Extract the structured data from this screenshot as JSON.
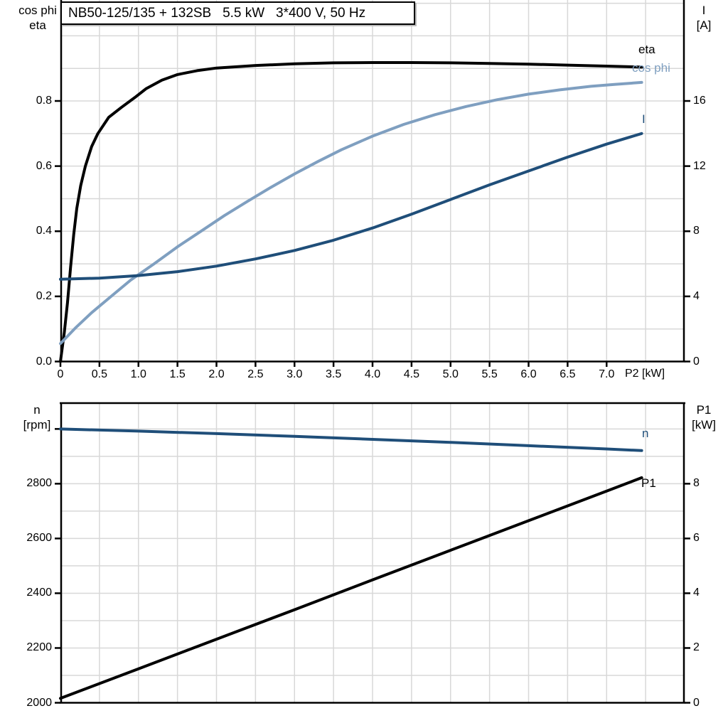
{
  "colors": {
    "eta": "#000000",
    "cos_phi": "#7F9FC0",
    "current": "#1F4E79",
    "speed": "#1F4E79",
    "p1": "#000000",
    "grid": "#D8D8D8",
    "axis": "#000000",
    "background": "#FFFFFF"
  },
  "chart_data": [
    {
      "type": "line",
      "title": "NB50-125/135 + 132SB   5.5 kW   3*400 V, 50 Hz",
      "grid": true,
      "x_axis": {
        "label": "P2 [kW]",
        "range": [
          0,
          8
        ],
        "grid_step": 0.5,
        "tick_values": [
          0,
          0.5,
          1,
          1.5,
          2,
          2.5,
          3,
          3.5,
          4,
          4.5,
          5,
          5.5,
          6,
          6.5,
          7
        ],
        "tick_labels": [
          "0",
          "0.5",
          "1.0",
          "1.5",
          "2.0",
          "2.5",
          "3.0",
          "3.5",
          "4.0",
          "4.5",
          "5.0",
          "5.5",
          "6.0",
          "6.5",
          "7.0"
        ]
      },
      "y_left": {
        "label": "cos phi / eta",
        "display_lines": [
          "cos phi",
          "eta"
        ],
        "range": [
          0,
          1.11
        ],
        "grid_step": 0.1,
        "tick_values": [
          0,
          0.2,
          0.4,
          0.6,
          0.8
        ],
        "tick_labels": [
          "0.0",
          "0.2",
          "0.4",
          "0.6",
          "0.8"
        ]
      },
      "y_right": {
        "label": "I [A]",
        "display_lines": [
          "I",
          "[A]"
        ],
        "range": [
          0,
          22.2
        ],
        "tick_values": [
          0,
          4,
          8,
          12,
          16
        ],
        "tick_labels": [
          "0",
          "4",
          "8",
          "12",
          "16"
        ]
      },
      "series": [
        {
          "name": "eta",
          "axis": "left",
          "color": "#000000",
          "points": [
            [
              0,
              0
            ],
            [
              0.05,
              0.09
            ],
            [
              0.09,
              0.18
            ],
            [
              0.13,
              0.29
            ],
            [
              0.17,
              0.39
            ],
            [
              0.21,
              0.47
            ],
            [
              0.26,
              0.54
            ],
            [
              0.32,
              0.6
            ],
            [
              0.4,
              0.66
            ],
            [
              0.48,
              0.7
            ],
            [
              0.62,
              0.75
            ],
            [
              0.78,
              0.78
            ],
            [
              0.95,
              0.81
            ],
            [
              1.1,
              0.838
            ],
            [
              1.3,
              0.864
            ],
            [
              1.5,
              0.881
            ],
            [
              1.75,
              0.893
            ],
            [
              2,
              0.901
            ],
            [
              2.5,
              0.909
            ],
            [
              3,
              0.914
            ],
            [
              3.5,
              0.917
            ],
            [
              4,
              0.918
            ],
            [
              4.5,
              0.918
            ],
            [
              5,
              0.917
            ],
            [
              5.5,
              0.915
            ],
            [
              6,
              0.913
            ],
            [
              6.5,
              0.91
            ],
            [
              7,
              0.907
            ],
            [
              7.45,
              0.904
            ]
          ]
        },
        {
          "name": "cos phi",
          "axis": "left",
          "color": "#7F9FC0",
          "points": [
            [
              0,
              0.055
            ],
            [
              0.2,
              0.105
            ],
            [
              0.4,
              0.15
            ],
            [
              0.65,
              0.2
            ],
            [
              0.9,
              0.25
            ],
            [
              1.2,
              0.3
            ],
            [
              1.5,
              0.352
            ],
            [
              1.8,
              0.4
            ],
            [
              2.1,
              0.448
            ],
            [
              2.4,
              0.492
            ],
            [
              2.7,
              0.535
            ],
            [
              3,
              0.576
            ],
            [
              3.3,
              0.614
            ],
            [
              3.6,
              0.65
            ],
            [
              4,
              0.692
            ],
            [
              4.4,
              0.728
            ],
            [
              4.8,
              0.758
            ],
            [
              5.2,
              0.783
            ],
            [
              5.6,
              0.804
            ],
            [
              6,
              0.821
            ],
            [
              6.4,
              0.834
            ],
            [
              6.8,
              0.845
            ],
            [
              7.1,
              0.851
            ],
            [
              7.45,
              0.857
            ]
          ]
        },
        {
          "name": "I",
          "axis": "right",
          "color": "#1F4E79",
          "points": [
            [
              0,
              5.05
            ],
            [
              0.5,
              5.12
            ],
            [
              1,
              5.28
            ],
            [
              1.5,
              5.52
            ],
            [
              2,
              5.86
            ],
            [
              2.5,
              6.3
            ],
            [
              3,
              6.82
            ],
            [
              3.5,
              7.45
            ],
            [
              4,
              8.2
            ],
            [
              4.5,
              9.05
            ],
            [
              5,
              9.95
            ],
            [
              5.5,
              10.85
            ],
            [
              6,
              11.7
            ],
            [
              6.5,
              12.55
            ],
            [
              7,
              13.35
            ],
            [
              7.45,
              14
            ]
          ]
        }
      ]
    },
    {
      "type": "line",
      "title": "",
      "grid": true,
      "x_axis": {
        "label": "",
        "range": [
          0,
          8
        ],
        "grid_step": 0.5,
        "tick_values": [],
        "tick_labels": []
      },
      "y_left": {
        "label": "n [rpm]",
        "display_lines": [
          "n",
          "[rpm]"
        ],
        "range": [
          2000,
          3097
        ],
        "grid_step": 100,
        "tick_values": [
          2000,
          2200,
          2400,
          2600,
          2800,
          3000
        ],
        "tick_labels": [
          "2000",
          "2200",
          "2400",
          "2600",
          "2800",
          ""
        ]
      },
      "y_right": {
        "label": "P1 [kW]",
        "display_lines": [
          "P1",
          "[kW]"
        ],
        "range": [
          0,
          10.97
        ],
        "tick_values": [
          0,
          2,
          4,
          6,
          8
        ],
        "tick_labels": [
          "0",
          "2",
          "4",
          "6",
          "8"
        ]
      },
      "series": [
        {
          "name": "n",
          "axis": "left",
          "color": "#1F4E79",
          "points": [
            [
              0,
              3000
            ],
            [
              1,
              2992
            ],
            [
              2,
              2983
            ],
            [
              3,
              2973
            ],
            [
              4,
              2962
            ],
            [
              5,
              2951
            ],
            [
              6,
              2939
            ],
            [
              7,
              2927
            ],
            [
              7.45,
              2921
            ]
          ]
        },
        {
          "name": "P1",
          "axis": "right",
          "color": "#000000",
          "points": [
            [
              0,
              0.16
            ],
            [
              1,
              1.24
            ],
            [
              2,
              2.32
            ],
            [
              3,
              3.4
            ],
            [
              4,
              4.49
            ],
            [
              5,
              5.57
            ],
            [
              6,
              6.65
            ],
            [
              7,
              7.73
            ],
            [
              7.45,
              8.22
            ]
          ]
        }
      ]
    }
  ]
}
